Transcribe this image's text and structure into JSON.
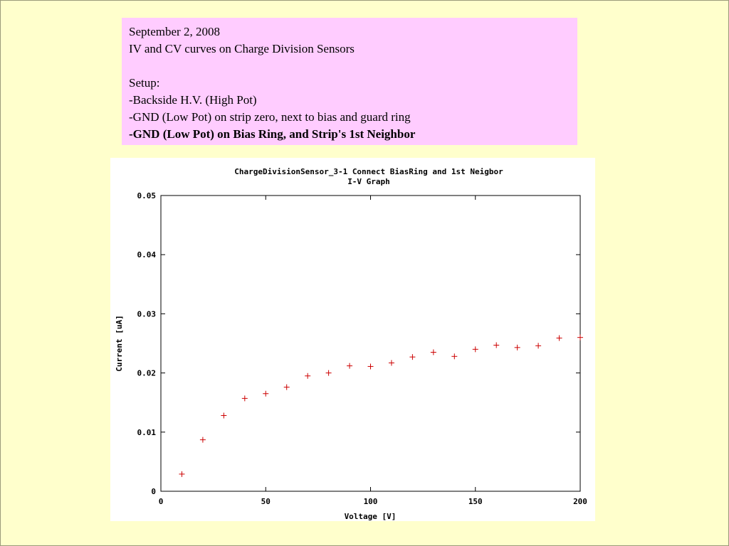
{
  "notes": {
    "date": "September 2, 2008",
    "subject": "IV and CV curves on Charge Division Sensors",
    "setup_heading": "Setup:",
    "setup_lines": [
      "-Backside H.V. (High Pot)",
      "-GND (Low Pot) on strip zero, next to bias and guard ring"
    ],
    "setup_highlight": "-GND (Low Pot) on Bias Ring, and Strip's 1st Neighbor"
  },
  "colors": {
    "background": "#ffffcc",
    "notes_box": "#ffccff",
    "marker": "#cc0000"
  },
  "chart_data": {
    "type": "scatter",
    "title": "ChargeDivisionSensor_3-1 Connect BiasRing and 1st Neigbor",
    "subtitle": "I-V Graph",
    "xlabel": "Voltage [V]",
    "ylabel": "Current [uA]",
    "xlim": [
      0,
      200
    ],
    "ylim": [
      0,
      0.05
    ],
    "xticks": [
      "0",
      "50",
      "100",
      "150",
      "200"
    ],
    "yticks": [
      "0",
      "0.01",
      "0.02",
      "0.03",
      "0.04",
      "0.05"
    ],
    "grid": false,
    "marker": "+",
    "x": [
      10,
      20,
      30,
      40,
      50,
      60,
      70,
      80,
      90,
      100,
      110,
      120,
      130,
      140,
      150,
      160,
      170,
      180,
      190,
      200
    ],
    "y": [
      0.0029,
      0.0087,
      0.0128,
      0.0157,
      0.0165,
      0.0176,
      0.0195,
      0.02,
      0.0212,
      0.0211,
      0.0217,
      0.0227,
      0.0235,
      0.0228,
      0.024,
      0.0247,
      0.0243,
      0.0246,
      0.0259,
      0.026
    ]
  }
}
